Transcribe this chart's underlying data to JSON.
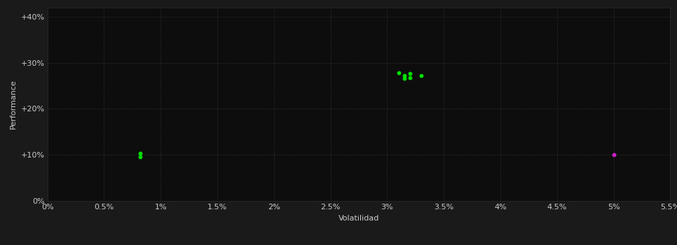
{
  "background_color": "#1a1a1a",
  "plot_bg_color": "#0d0d0d",
  "grid_color": "#333333",
  "xlabel": "Volatilidad",
  "ylabel": "Performance",
  "xlim": [
    0,
    0.055
  ],
  "ylim": [
    0,
    0.42
  ],
  "xticks": [
    0,
    0.005,
    0.01,
    0.015,
    0.02,
    0.025,
    0.03,
    0.035,
    0.04,
    0.045,
    0.05,
    0.055
  ],
  "yticks": [
    0,
    0.1,
    0.2,
    0.3,
    0.4
  ],
  "green_points": [
    [
      0.0082,
      0.104
    ],
    [
      0.0082,
      0.096
    ],
    [
      0.031,
      0.278
    ],
    [
      0.0315,
      0.272
    ],
    [
      0.0315,
      0.266
    ],
    [
      0.032,
      0.276
    ],
    [
      0.032,
      0.268
    ],
    [
      0.033,
      0.272
    ]
  ],
  "magenta_points": [
    [
      0.05,
      0.101
    ]
  ],
  "green_color": "#00dd00",
  "magenta_color": "#cc22cc",
  "point_size": 18,
  "tick_color": "#cccccc",
  "label_color": "#cccccc",
  "axis_label_fontsize": 8,
  "tick_fontsize": 8
}
